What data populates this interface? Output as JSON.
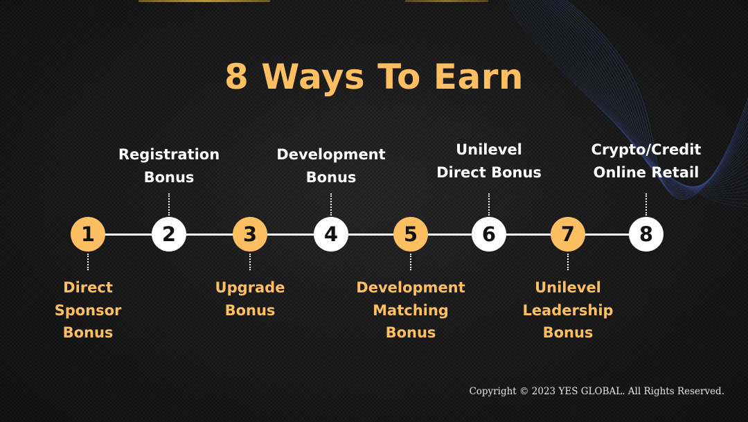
{
  "title": "8 Ways To Earn",
  "colors": {
    "accent": "#fdbf62",
    "node_light": "#ffffff",
    "background": "#1b1b1b",
    "wave_lines": "#3a4a8c"
  },
  "steps": [
    {
      "number": "1",
      "label_lines": [
        "Direct",
        "Sponsor",
        "Bonus"
      ],
      "position": "below",
      "style": "gold"
    },
    {
      "number": "2",
      "label_lines": [
        "Registration",
        "Bonus"
      ],
      "position": "above",
      "style": "white"
    },
    {
      "number": "3",
      "label_lines": [
        "Upgrade",
        "Bonus"
      ],
      "position": "below",
      "style": "gold"
    },
    {
      "number": "4",
      "label_lines": [
        "Development",
        "Bonus"
      ],
      "position": "above",
      "style": "white"
    },
    {
      "number": "5",
      "label_lines": [
        "Development",
        "Matching",
        "Bonus"
      ],
      "position": "below",
      "style": "gold"
    },
    {
      "number": "6",
      "label_lines": [
        "Unilevel",
        "Direct Bonus"
      ],
      "position": "above",
      "style": "white"
    },
    {
      "number": "7",
      "label_lines": [
        "Unilevel",
        "Leadership",
        "Bonus"
      ],
      "position": "below",
      "style": "gold"
    },
    {
      "number": "8",
      "label_lines": [
        "Crypto/Credit",
        "Online Retail"
      ],
      "position": "above",
      "style": "white"
    }
  ],
  "footer": {
    "copyright": "Copyright © 2023 YES GLOBAL. All Rights Reserved."
  }
}
